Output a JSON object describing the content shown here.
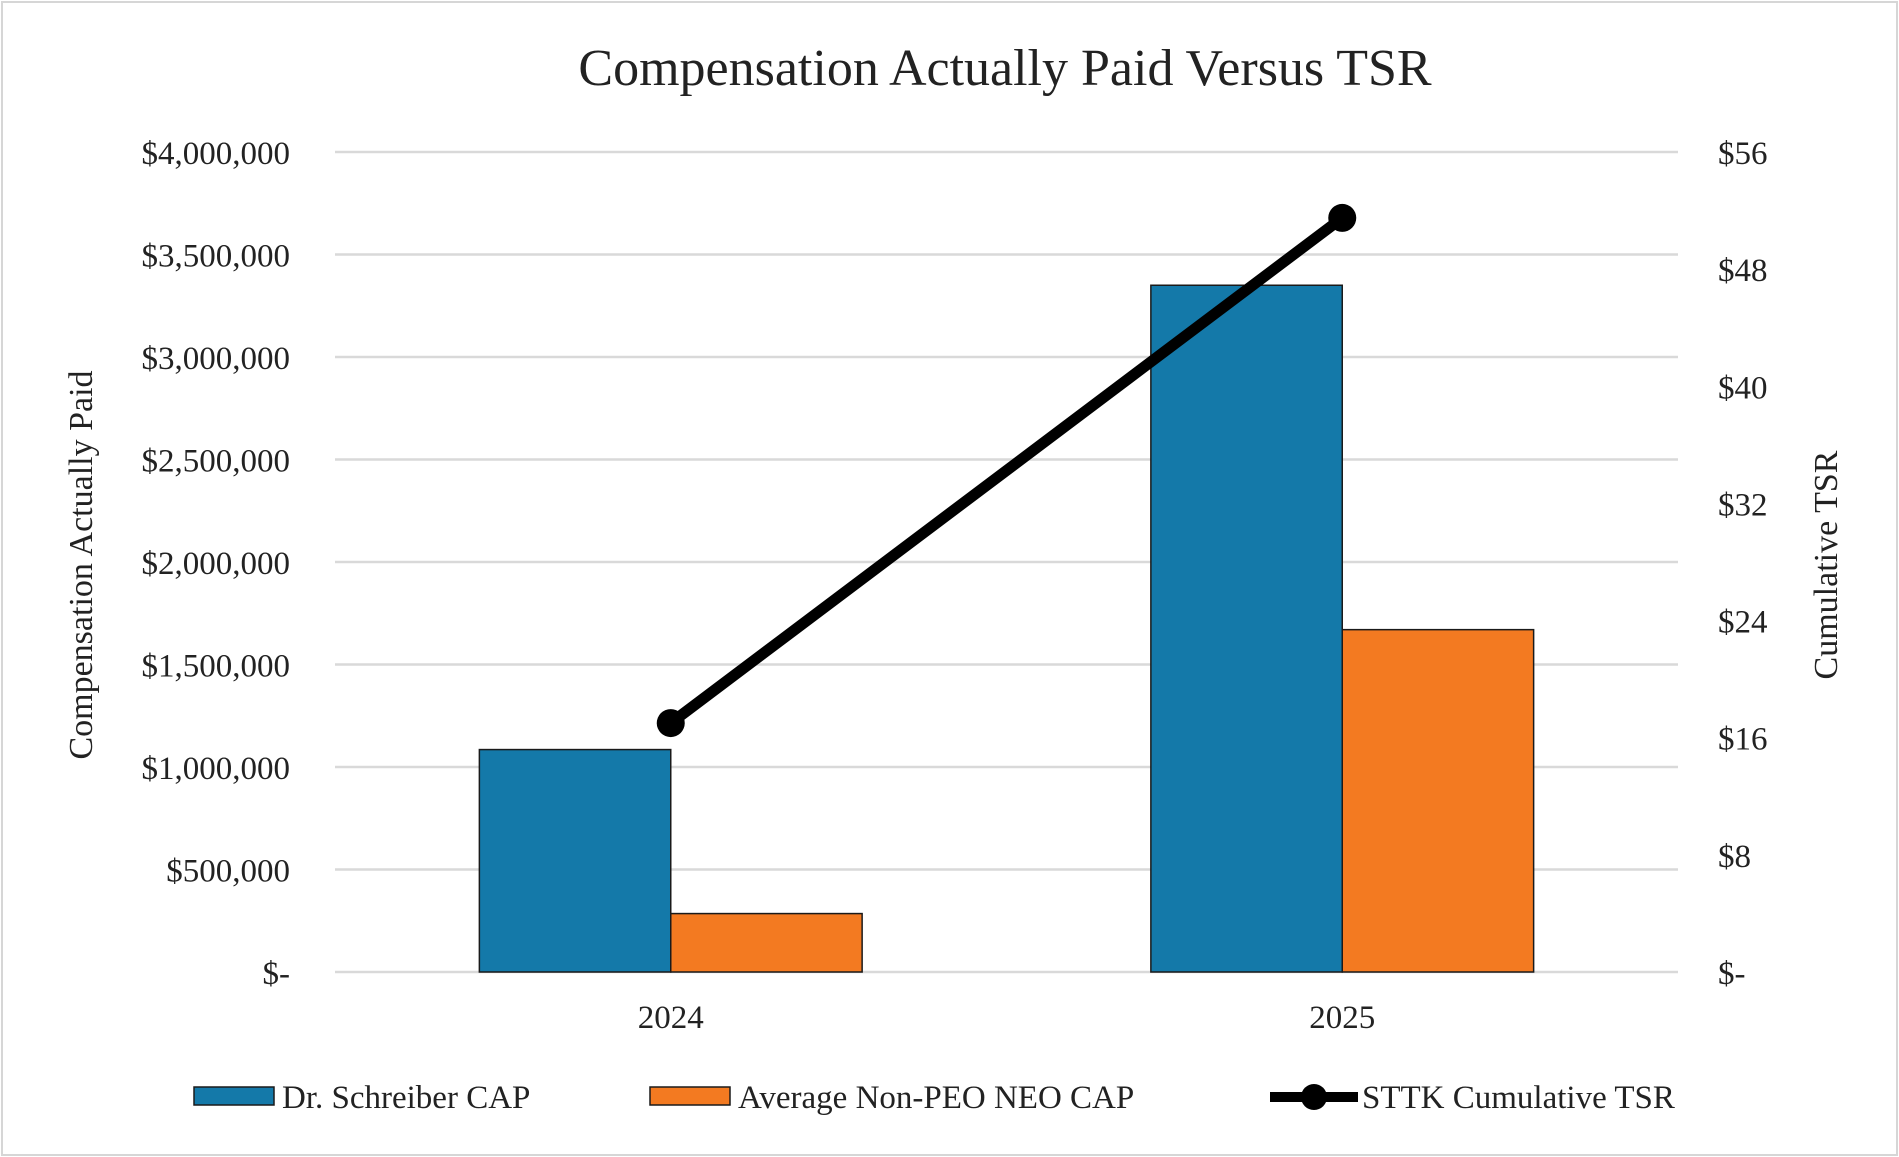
{
  "chart_data": {
    "type": "bar",
    "title": "Compensation Actually Paid Versus TSR",
    "categories": [
      "2024",
      "2025"
    ],
    "series": [
      {
        "name": "Dr. Schreiber CAP",
        "type": "bar",
        "axis": "left",
        "color": "#1479a9",
        "values": [
          1085000,
          3350000
        ]
      },
      {
        "name": "Average Non-PEO NEO CAP",
        "type": "bar",
        "axis": "left",
        "color": "#f37a21",
        "values": [
          285000,
          1670000
        ]
      },
      {
        "name": "STTK Cumulative TSR",
        "type": "line",
        "axis": "right",
        "color": "#000000",
        "values": [
          17.0,
          51.5
        ]
      }
    ],
    "ylabel": "Compensation Actually Paid",
    "y2label": "Cumulative TSR",
    "ylim": [
      0,
      4000000
    ],
    "y2lim": [
      0,
      56
    ],
    "yticks": [
      "$-",
      "$500,000",
      "$1,000,000",
      "$1,500,000",
      "$2,000,000",
      "$2,500,000",
      "$3,000,000",
      "$3,500,000",
      "$4,000,000"
    ],
    "y2ticks": [
      "$-",
      "$8",
      "$16",
      "$24",
      "$32",
      "$40",
      "$48",
      "$56"
    ],
    "grid": true,
    "legend_position": "bottom"
  }
}
